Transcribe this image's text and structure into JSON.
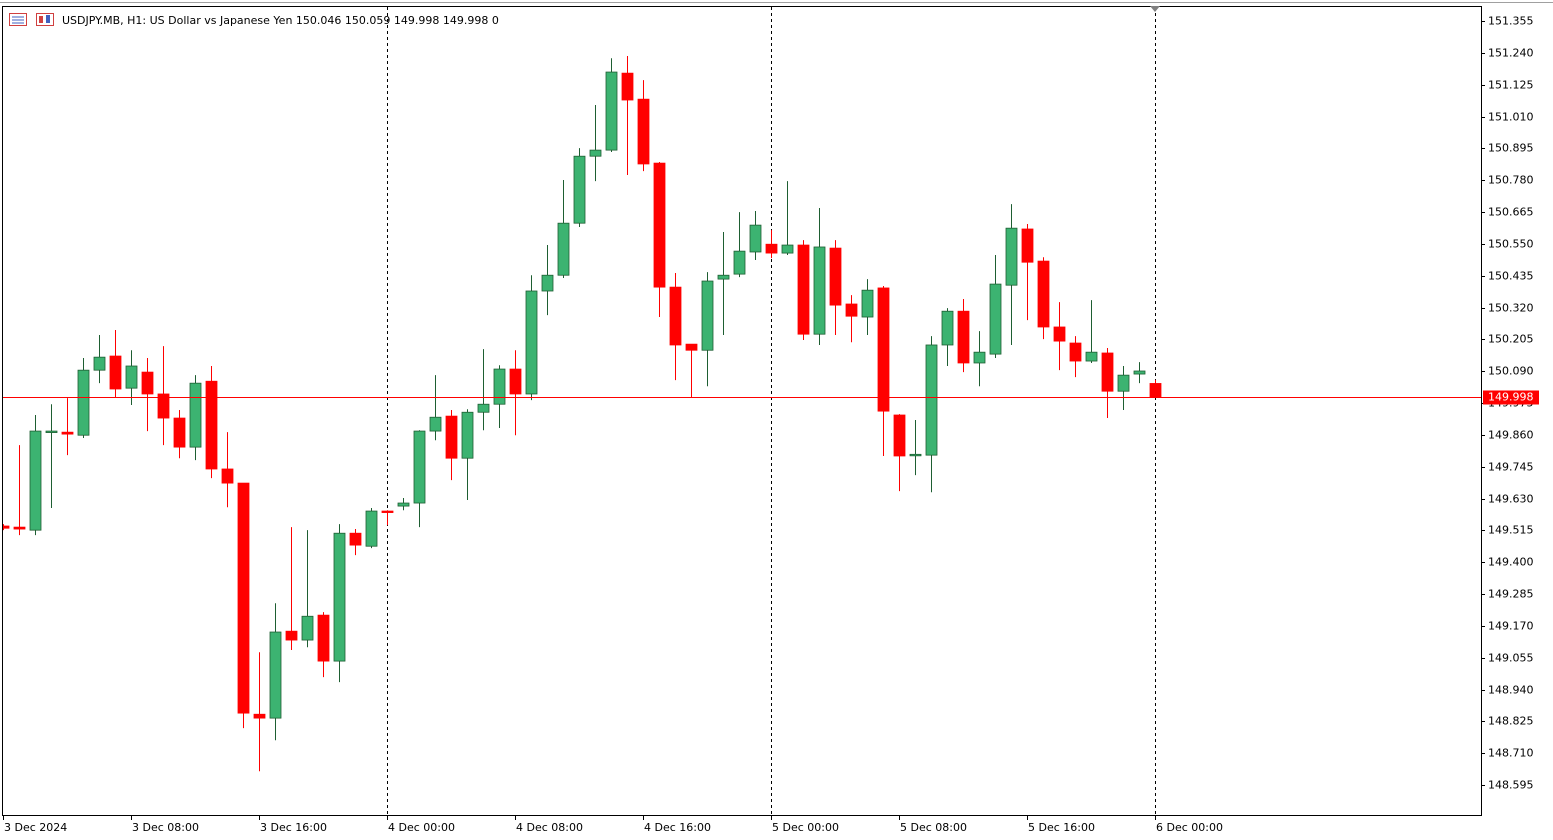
{
  "chart_data": {
    "type": "candlestick",
    "title": "USDJPY.MB, H1:  US Dollar vs Japanese Yen  150.046 150.059 149.998 149.998  0",
    "categories": [
      "3 Dec 2024",
      null,
      null,
      null,
      null,
      null,
      null,
      null,
      "3 Dec 08:00",
      null,
      null,
      null,
      null,
      null,
      null,
      null,
      "3 Dec 16:00",
      null,
      null,
      null,
      null,
      null,
      null,
      null,
      "4 Dec 00:00",
      null,
      null,
      null,
      null,
      null,
      null,
      null,
      "4 Dec 08:00",
      null,
      null,
      null,
      null,
      null,
      null,
      null,
      "4 Dec 16:00",
      null,
      null,
      null,
      null,
      null,
      null,
      null,
      "5 Dec 00:00",
      null,
      null,
      null,
      null,
      null,
      null,
      null,
      "5 Dec 08:00",
      null,
      null,
      null,
      null,
      null,
      null,
      null,
      "5 Dec 16:00",
      null,
      null,
      null,
      null,
      null,
      null,
      null,
      "6 Dec 00:00"
    ],
    "open": [
      149.531,
      149.527,
      149.516,
      149.87,
      149.87,
      149.859,
      150.094,
      150.145,
      150.029,
      150.087,
      150.008,
      149.921,
      149.816,
      150.054,
      149.737,
      149.686,
      148.851,
      148.837,
      149.151,
      149.119,
      149.209,
      149.043,
      149.505,
      149.458,
      149.585,
      149.603,
      149.614,
      149.874,
      149.928,
      149.776,
      149.942,
      149.971,
      150.098,
      150.008,
      150.38,
      150.437,
      150.625,
      150.867,
      150.889,
      151.167,
      151.073,
      150.842,
      150.394,
      150.188,
      150.166,
      150.423,
      150.441,
      150.521,
      150.549,
      150.517,
      150.546,
      150.224,
      150.535,
      150.333,
      150.286,
      150.391,
      149.932,
      149.787,
      149.787,
      150.185,
      150.307,
      150.12,
      150.152,
      150.401,
      150.604,
      150.488,
      150.25,
      150.192,
      150.127,
      150.156,
      150.018,
      150.08,
      150.046
    ],
    "high": [
      149.538,
      149.823,
      149.932,
      149.971,
      149.993,
      150.138,
      150.221,
      150.239,
      150.166,
      150.138,
      150.181,
      149.95,
      150.076,
      150.109,
      149.87,
      149.686,
      149.075,
      149.252,
      149.527,
      149.516,
      149.22,
      149.538,
      149.52,
      149.596,
      149.588,
      149.632,
      149.877,
      150.076,
      149.95,
      149.953,
      150.17,
      150.112,
      150.166,
      150.437,
      150.546,
      150.781,
      150.896,
      151.052,
      151.221,
      151.229,
      151.142,
      150.846,
      150.445,
      150.188,
      150.448,
      150.593,
      150.665,
      150.669,
      150.6,
      150.777,
      150.564,
      150.68,
      150.564,
      150.365,
      150.423,
      150.398,
      149.935,
      149.914,
      150.217,
      150.318,
      150.351,
      150.235,
      150.51,
      150.694,
      150.622,
      150.502,
      150.34,
      150.217,
      150.347,
      150.174,
      150.109,
      150.123,
      150.059
    ],
    "low": [
      149.516,
      149.498,
      149.498,
      149.596,
      149.787,
      149.849,
      150.047,
      149.997,
      149.968,
      149.874,
      149.823,
      149.776,
      149.769,
      149.704,
      149.599,
      148.801,
      148.645,
      148.757,
      149.083,
      149.093,
      148.985,
      148.967,
      149.426,
      149.451,
      149.534,
      149.588,
      149.527,
      149.841,
      149.697,
      149.625,
      149.877,
      149.885,
      149.859,
      149.986,
      150.293,
      150.427,
      150.611,
      150.777,
      150.882,
      150.799,
      150.813,
      150.286,
      150.058,
      149.997,
      150.036,
      150.221,
      150.43,
      150.492,
      150.499,
      150.51,
      150.203,
      150.185,
      150.221,
      150.195,
      150.221,
      149.784,
      149.657,
      149.715,
      149.653,
      150.109,
      150.087,
      150.036,
      150.138,
      150.185,
      150.275,
      150.206,
      150.094,
      150.069,
      150.12,
      149.921,
      149.95,
      150.047,
      149.998
    ],
    "close": [
      149.523,
      149.52,
      149.874,
      149.874,
      149.863,
      150.094,
      150.141,
      150.026,
      150.109,
      150.008,
      149.921,
      149.816,
      150.047,
      149.737,
      149.686,
      148.855,
      148.837,
      149.148,
      149.119,
      149.205,
      149.043,
      149.505,
      149.462,
      149.585,
      149.581,
      149.614,
      149.874,
      149.924,
      149.776,
      149.942,
      149.971,
      150.098,
      150.008,
      150.38,
      150.437,
      150.625,
      150.867,
      150.889,
      151.171,
      151.07,
      150.839,
      150.394,
      150.185,
      150.166,
      150.416,
      150.437,
      150.524,
      150.618,
      150.517,
      150.546,
      150.224,
      150.539,
      150.329,
      150.289,
      150.383,
      149.946,
      149.784,
      149.79,
      150.185,
      150.307,
      150.12,
      150.159,
      150.405,
      150.607,
      150.484,
      150.25,
      150.199,
      150.127,
      150.159,
      150.018,
      150.076,
      150.091,
      149.998
    ],
    "up_color": "#3cb371",
    "down_color": "#ff0000",
    "current_price": 149.998,
    "current_price_color": "#ff0000",
    "ylim": [
      148.487,
      151.406
    ],
    "yticks": [
      151.355,
      {
        "value": 151.24,
        "label": "151.240"
      },
      151.125,
      {
        "value": 151.01,
        "label": "151.010"
      },
      150.895,
      {
        "value": 150.78,
        "label": "150.780"
      },
      150.665,
      {
        "value": 150.55,
        "label": "150.550"
      },
      150.435,
      {
        "value": 150.32,
        "label": "150.320"
      },
      150.205,
      {
        "value": 150.09,
        "label": "150.090"
      },
      149.975,
      {
        "value": 149.86,
        "label": "149.860"
      },
      149.745,
      {
        "value": 149.63,
        "label": "149.630"
      },
      149.515,
      {
        "value": 149.4,
        "label": "149.400"
      },
      149.285,
      {
        "value": 149.17,
        "label": "149.170"
      },
      149.055,
      {
        "value": 148.94,
        "label": "148.940"
      },
      148.825,
      {
        "value": 148.71,
        "label": "148.710"
      },
      148.595
    ]
  }
}
